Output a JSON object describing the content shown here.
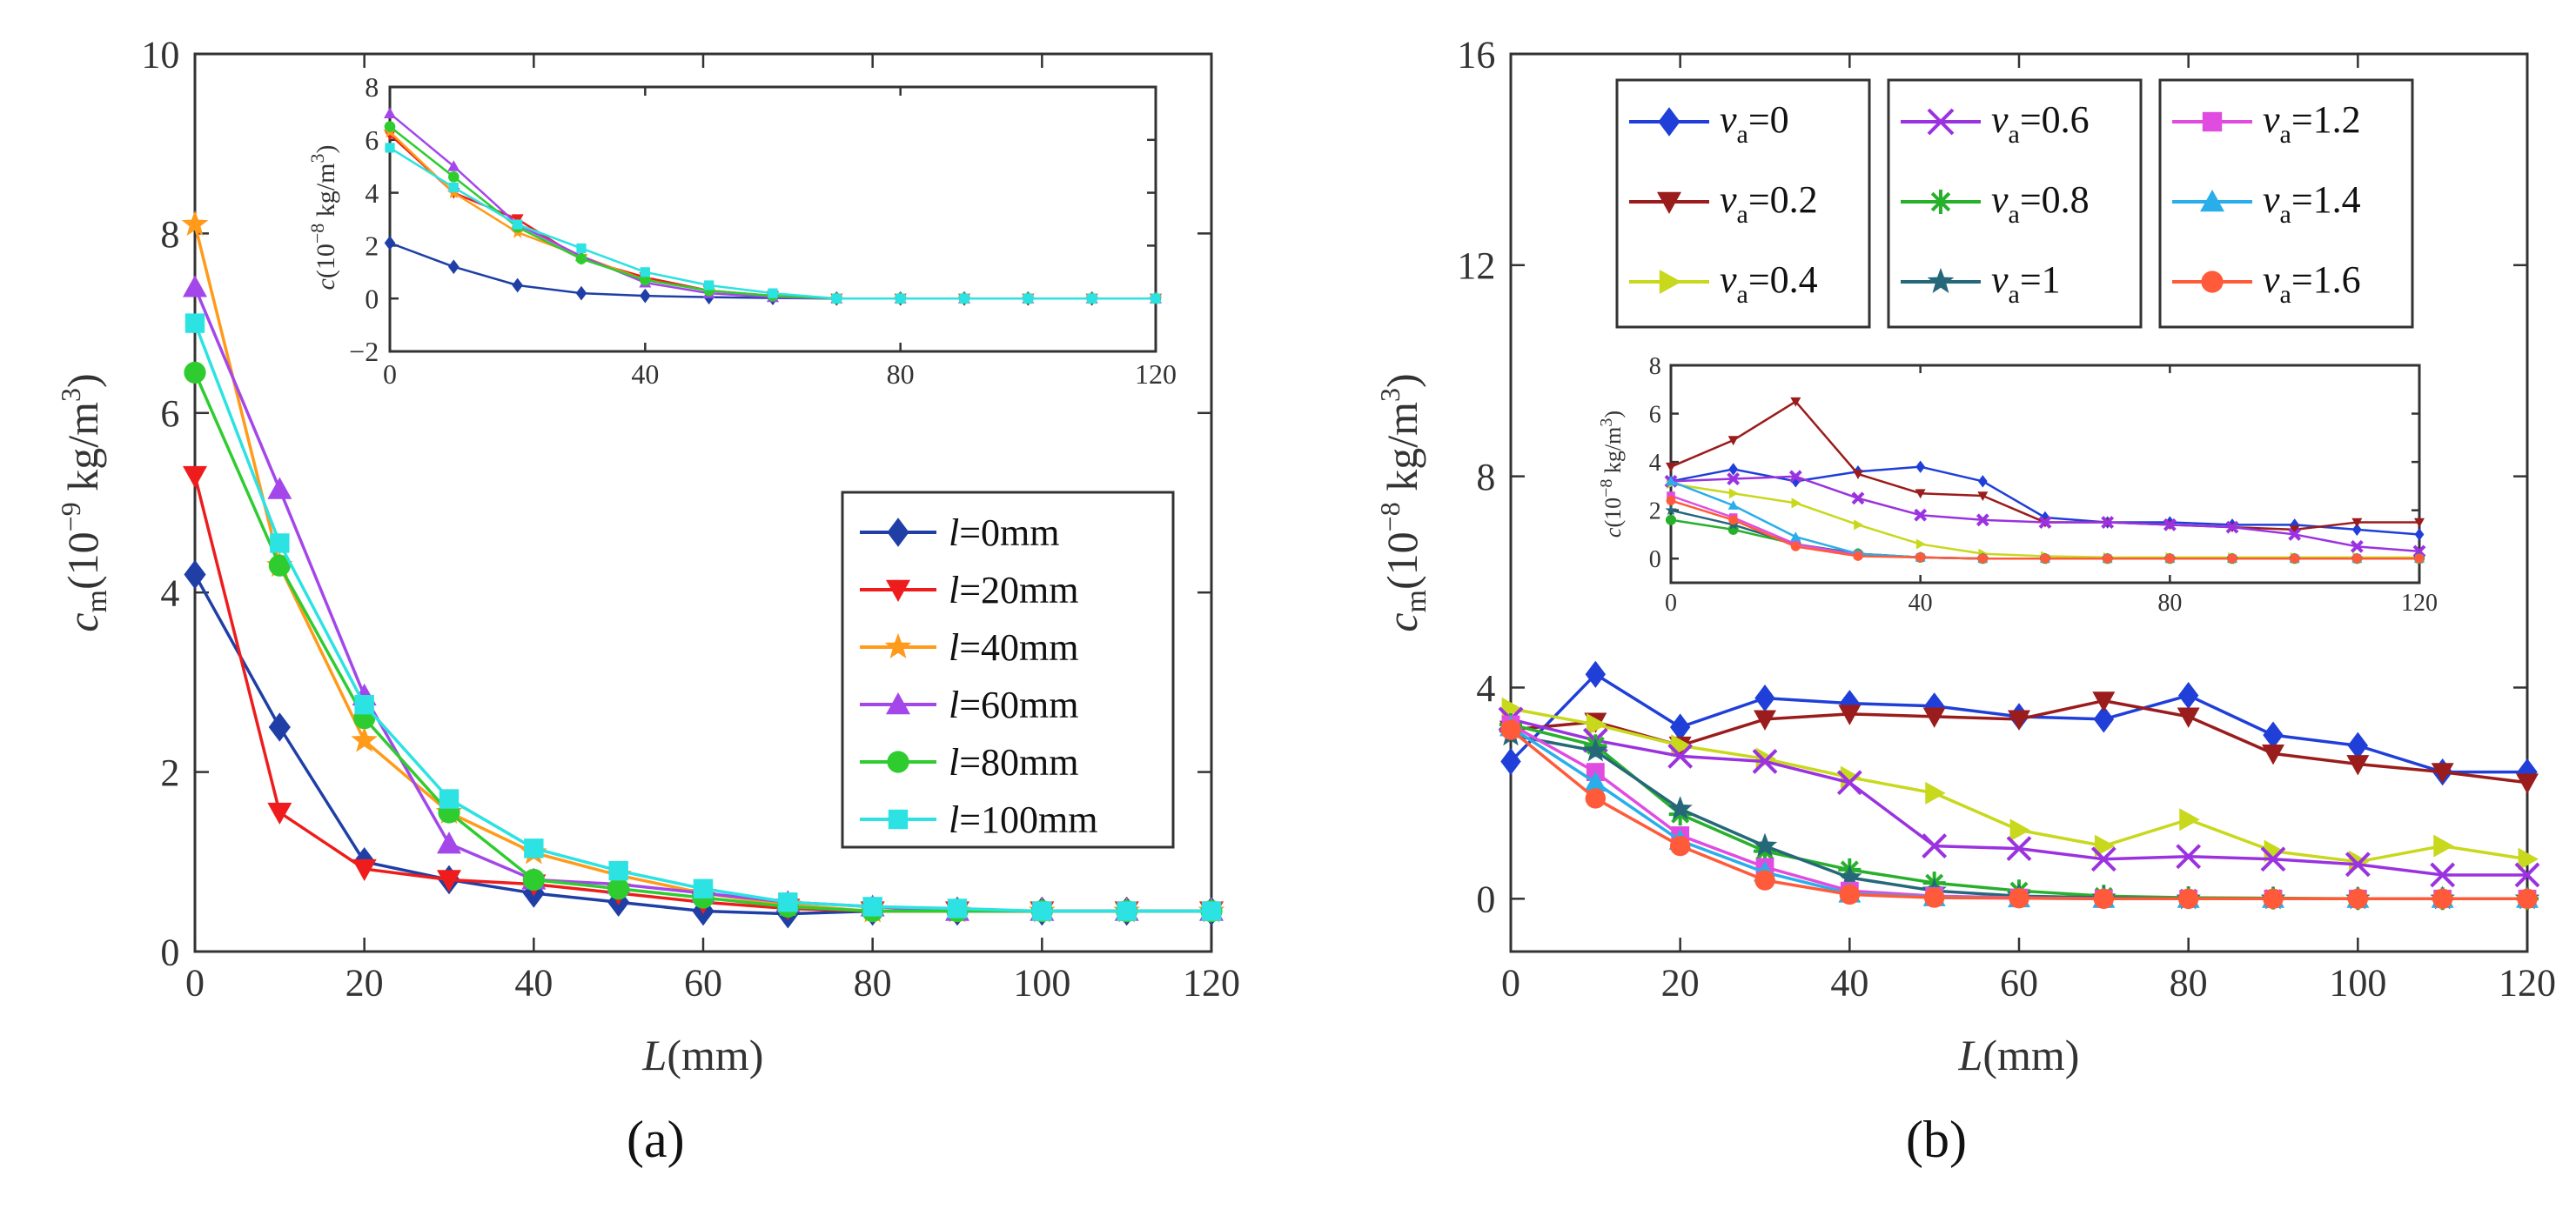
{
  "colors": {
    "axis": "#333333",
    "l0": "#1f3fa6",
    "l20": "#ee1c1c",
    "l40": "#ff9a1a",
    "l60": "#a347ea",
    "l80": "#2fcc2f",
    "l100": "#2ce2e2",
    "v0": "#1f3fd8",
    "v02": "#9b1c1c",
    "v04": "#c8d81c",
    "v06": "#9b32e0",
    "v08": "#27b02b",
    "v1": "#24687a",
    "v12": "#e04ce0",
    "v14": "#2aaeea",
    "v16": "#ff5a3a"
  },
  "chart_data": [
    {
      "id": "a",
      "type": "line",
      "panel_label": "(a)",
      "title": "",
      "xlabel_italic": "L",
      "xlabel_rest": "(mm)",
      "ylabel_main": "c",
      "ylabel_sub": "m",
      "ylabel_unit": "(10",
      "ylabel_exp": "−9",
      "ylabel_unit2": " kg/m",
      "ylabel_exp2": "3",
      "ylabel_close": ")",
      "xlim": [
        0,
        120
      ],
      "ylim": [
        0,
        10
      ],
      "xticks": [
        "0",
        "20",
        "40",
        "60",
        "80",
        "100",
        "120"
      ],
      "yticks": [
        "0",
        "2",
        "4",
        "6",
        "8",
        "10"
      ],
      "x": [
        0,
        10,
        20,
        30,
        40,
        50,
        60,
        70,
        80,
        90,
        100,
        110,
        120
      ],
      "legend_position": "right-middle",
      "series": [
        {
          "name": "l=0mm",
          "name_italic": "l",
          "name_rest": "=0mm",
          "color_key": "l0",
          "marker": "diamond",
          "values": [
            4.2,
            2.5,
            1.0,
            0.8,
            0.65,
            0.55,
            0.45,
            0.42,
            0.45,
            0.45,
            0.45,
            0.45,
            0.45
          ]
        },
        {
          "name": "l=20mm",
          "name_italic": "l",
          "name_rest": "=20mm",
          "color_key": "l20",
          "marker": "triangle-down",
          "values": [
            5.3,
            1.55,
            0.92,
            0.8,
            0.75,
            0.65,
            0.55,
            0.48,
            0.45,
            0.45,
            0.45,
            0.45,
            0.45
          ]
        },
        {
          "name": "l=40mm",
          "name_italic": "l",
          "name_rest": "=40mm",
          "color_key": "l40",
          "marker": "star",
          "values": [
            8.1,
            4.3,
            2.35,
            1.55,
            1.1,
            0.85,
            0.65,
            0.52,
            0.45,
            0.45,
            0.45,
            0.45,
            0.45
          ]
        },
        {
          "name": "l=60mm",
          "name_italic": "l",
          "name_rest": "=60mm",
          "color_key": "l60",
          "marker": "triangle-up",
          "values": [
            7.4,
            5.15,
            2.85,
            1.2,
            0.8,
            0.75,
            0.65,
            0.55,
            0.5,
            0.45,
            0.45,
            0.45,
            0.45
          ]
        },
        {
          "name": "l=80mm",
          "name_italic": "l",
          "name_rest": "=80mm",
          "color_key": "l80",
          "marker": "circle",
          "values": [
            6.45,
            4.3,
            2.6,
            1.55,
            0.8,
            0.7,
            0.6,
            0.5,
            0.45,
            0.45,
            0.45,
            0.45,
            0.45
          ]
        },
        {
          "name": "l=100mm",
          "name_italic": "l",
          "name_rest": "=100mm",
          "color_key": "l100",
          "marker": "square",
          "values": [
            7.0,
            4.55,
            2.75,
            1.7,
            1.15,
            0.9,
            0.7,
            0.55,
            0.5,
            0.48,
            0.45,
            0.45,
            0.45
          ]
        }
      ],
      "inset": {
        "ylabel": "c(10",
        "ylabel_exp": "−8",
        "ylabel_mid": " kg/m",
        "ylabel_exp2": "3",
        "ylabel_close": ")",
        "xlim": [
          0,
          120
        ],
        "ylim": [
          -2,
          8
        ],
        "xticks": [
          "0",
          "40",
          "80",
          "120"
        ],
        "yticks": [
          "−2",
          "0",
          "2",
          "4",
          "6",
          "8"
        ],
        "x": [
          0,
          10,
          20,
          30,
          40,
          50,
          60,
          70,
          80,
          90,
          100,
          110,
          120
        ],
        "series": [
          {
            "color_key": "l0",
            "values": [
              2.1,
              1.2,
              0.5,
              0.2,
              0.1,
              0.05,
              0.02,
              0,
              0,
              0,
              0,
              0,
              0
            ]
          },
          {
            "color_key": "l20",
            "values": [
              6.2,
              4.0,
              3.0,
              1.5,
              0.8,
              0.3,
              0.1,
              0,
              0,
              0,
              0,
              0,
              0
            ]
          },
          {
            "color_key": "l40",
            "values": [
              6.3,
              4.0,
              2.5,
              1.6,
              0.7,
              0.3,
              0.1,
              0,
              0,
              0,
              0,
              0,
              0
            ]
          },
          {
            "color_key": "l60",
            "values": [
              7.0,
              5.0,
              2.8,
              1.6,
              0.6,
              0.2,
              0.05,
              0,
              0,
              0,
              0,
              0,
              0
            ]
          },
          {
            "color_key": "l80",
            "values": [
              6.5,
              4.6,
              2.7,
              1.5,
              0.7,
              0.3,
              0.1,
              0,
              0,
              0,
              0,
              0,
              0
            ]
          },
          {
            "color_key": "l100",
            "values": [
              5.7,
              4.2,
              2.8,
              1.9,
              1.0,
              0.5,
              0.2,
              0,
              0,
              0,
              0,
              0,
              0
            ]
          }
        ]
      }
    },
    {
      "id": "b",
      "type": "line",
      "panel_label": "(b)",
      "title": "",
      "xlabel_italic": "L",
      "xlabel_rest": "(mm)",
      "ylabel_main": "c",
      "ylabel_sub": "m",
      "ylabel_unit": "(10",
      "ylabel_exp": "−8",
      "ylabel_unit2": " kg/m",
      "ylabel_exp2": "3",
      "ylabel_close": ")",
      "xlim": [
        0,
        120
      ],
      "ylim": [
        -1,
        16
      ],
      "xticks": [
        "0",
        "20",
        "40",
        "60",
        "80",
        "100",
        "120"
      ],
      "yticks": [
        "0",
        "4",
        "8",
        "12",
        "16"
      ],
      "x": [
        0,
        10,
        20,
        30,
        40,
        50,
        60,
        70,
        80,
        90,
        100,
        110,
        120
      ],
      "legend_position": "top",
      "series": [
        {
          "name": "va=0",
          "name_v": "v",
          "name_sub": "a",
          "name_rest": "=0",
          "color_key": "v0",
          "marker": "diamond",
          "values": [
            2.6,
            4.25,
            3.25,
            3.8,
            3.7,
            3.65,
            3.45,
            3.4,
            3.85,
            3.1,
            2.9,
            2.4,
            2.4
          ]
        },
        {
          "name": "va=0.2",
          "name_v": "v",
          "name_sub": "a",
          "name_rest": "=0.2",
          "color_key": "v02",
          "marker": "triangle-down",
          "values": [
            3.2,
            3.35,
            2.9,
            3.4,
            3.5,
            3.45,
            3.4,
            3.75,
            3.45,
            2.75,
            2.55,
            2.4,
            2.2
          ]
        },
        {
          "name": "va=0.4",
          "name_v": "v",
          "name_sub": "a",
          "name_rest": "=0.4",
          "color_key": "v04",
          "marker": "triangle-right",
          "values": [
            3.6,
            3.3,
            2.9,
            2.65,
            2.3,
            2.0,
            1.3,
            1.0,
            1.5,
            0.9,
            0.7,
            1.0,
            0.75
          ]
        },
        {
          "name": "va=0.6",
          "name_v": "v",
          "name_sub": "a",
          "name_rest": "=0.6",
          "color_key": "v06",
          "marker": "x",
          "values": [
            3.4,
            3.0,
            2.7,
            2.6,
            2.2,
            1.0,
            0.95,
            0.75,
            0.8,
            0.75,
            0.65,
            0.45,
            0.45
          ]
        },
        {
          "name": "va=0.8",
          "name_v": "v",
          "name_sub": "a",
          "name_rest": "=0.8",
          "color_key": "v08",
          "marker": "asterisk",
          "values": [
            3.3,
            2.9,
            1.6,
            0.9,
            0.55,
            0.3,
            0.15,
            0.05,
            0.02,
            0.01,
            0,
            0,
            0
          ]
        },
        {
          "name": "va=1",
          "name_v": "v",
          "name_sub": "a",
          "name_rest": "=1",
          "color_key": "v1",
          "marker": "star",
          "values": [
            3.1,
            2.8,
            1.7,
            1.0,
            0.4,
            0.15,
            0.05,
            0.02,
            0,
            0,
            0,
            0,
            0
          ]
        },
        {
          "name": "va=1.2",
          "name_v": "v",
          "name_sub": "a",
          "name_rest": "=1.2",
          "color_key": "v12",
          "marker": "square",
          "values": [
            3.3,
            2.4,
            1.2,
            0.6,
            0.15,
            0.05,
            0.02,
            0,
            0,
            0,
            0,
            0,
            0
          ]
        },
        {
          "name": "va=1.4",
          "name_v": "v",
          "name_sub": "a",
          "name_rest": "=1.4",
          "color_key": "v14",
          "marker": "triangle-up",
          "values": [
            3.25,
            2.2,
            1.1,
            0.5,
            0.1,
            0.03,
            0.01,
            0,
            0,
            0,
            0,
            0,
            0
          ]
        },
        {
          "name": "va=1.6",
          "name_v": "v",
          "name_sub": "a",
          "name_rest": "=1.6",
          "color_key": "v16",
          "marker": "circle",
          "values": [
            3.2,
            1.9,
            1.0,
            0.35,
            0.08,
            0.02,
            0.01,
            0,
            0,
            0,
            0,
            0,
            0
          ]
        }
      ],
      "inset": {
        "ylabel": "c(10",
        "ylabel_exp": "−8",
        "ylabel_mid": " kg/m",
        "ylabel_exp2": "3",
        "ylabel_close": ")",
        "xlim": [
          0,
          120
        ],
        "ylim": [
          -1,
          8
        ],
        "xticks": [
          "0",
          "40",
          "80",
          "120"
        ],
        "yticks": [
          "0",
          "2",
          "4",
          "6",
          "8"
        ],
        "x": [
          0,
          10,
          20,
          30,
          40,
          50,
          60,
          70,
          80,
          90,
          100,
          110,
          120
        ],
        "series": [
          {
            "color_key": "v0",
            "values": [
              3.2,
              3.7,
              3.2,
              3.6,
              3.8,
              3.2,
              1.7,
              1.5,
              1.5,
              1.4,
              1.4,
              1.2,
              1.0
            ]
          },
          {
            "color_key": "v02",
            "values": [
              3.8,
              4.9,
              6.5,
              3.5,
              2.7,
              2.6,
              1.5,
              1.5,
              1.4,
              1.3,
              1.2,
              1.5,
              1.5
            ]
          },
          {
            "color_key": "v04",
            "values": [
              3.1,
              2.7,
              2.3,
              1.4,
              0.6,
              0.2,
              0.1,
              0.05,
              0.05,
              0.05,
              0.05,
              0.05,
              0.05
            ]
          },
          {
            "color_key": "v06",
            "values": [
              3.2,
              3.3,
              3.4,
              2.5,
              1.8,
              1.6,
              1.5,
              1.5,
              1.4,
              1.3,
              1.0,
              0.5,
              0.3
            ]
          },
          {
            "color_key": "v08",
            "values": [
              1.6,
              1.2,
              0.6,
              0.2,
              0.05,
              0,
              0,
              0,
              0,
              0,
              0,
              0,
              0
            ]
          },
          {
            "color_key": "v1",
            "values": [
              2.0,
              1.4,
              0.6,
              0.2,
              0.05,
              0,
              0,
              0,
              0,
              0,
              0,
              0,
              0
            ]
          },
          {
            "color_key": "v12",
            "values": [
              2.6,
              1.7,
              0.6,
              0.15,
              0.05,
              0,
              0,
              0,
              0,
              0,
              0,
              0,
              0
            ]
          },
          {
            "color_key": "v14",
            "values": [
              3.2,
              2.2,
              0.9,
              0.2,
              0.05,
              0,
              0,
              0,
              0,
              0,
              0,
              0,
              0
            ]
          },
          {
            "color_key": "v16",
            "values": [
              2.4,
              1.6,
              0.5,
              0.1,
              0.05,
              0,
              0,
              0,
              0,
              0,
              0,
              0,
              0
            ]
          }
        ]
      }
    }
  ]
}
